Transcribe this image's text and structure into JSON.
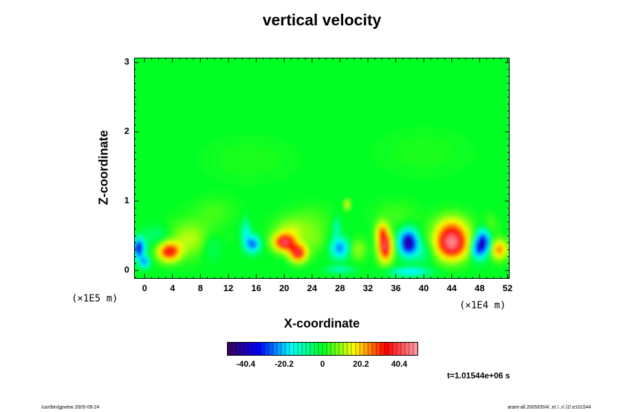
{
  "chart_data": {
    "type": "heatmap",
    "title": "vertical velocity",
    "xlabel": "X-coordinate",
    "ylabel": "Z-coordinate",
    "x_unit": "(×1E4 m)",
    "y_unit": "(×1E5 m)",
    "xlim": [
      -1.5,
      52.3
    ],
    "ylim": [
      -0.12,
      3.07
    ],
    "x_ticks": [
      0,
      4,
      8,
      12,
      16,
      20,
      24,
      28,
      32,
      36,
      40,
      44,
      48,
      52
    ],
    "y_ticks": [
      0,
      1,
      2,
      3
    ],
    "colorbar": {
      "range": [
        -50,
        50
      ],
      "tick_values": [
        -40.4,
        -20.2,
        0,
        20.2,
        40.4
      ],
      "tick_labels": [
        "-40.4",
        "-20.2",
        "0",
        "20.2",
        "40.4"
      ],
      "colors": [
        "#3a005a",
        "#0000ff",
        "#00ffff",
        "#00ff22",
        "#ffff00",
        "#ff0000",
        "#ff9ea8"
      ]
    },
    "features": [
      {
        "x": -0.8,
        "z": 0.32,
        "sx": 0.8,
        "sz": 0.14,
        "w": -38
      },
      {
        "x": 0.0,
        "z": 0.12,
        "sx": 0.7,
        "sz": 0.08,
        "w": -25
      },
      {
        "x": 3.5,
        "z": 0.27,
        "sx": 1.5,
        "sz": 0.13,
        "w": 35
      },
      {
        "x": 6.5,
        "z": 0.45,
        "sx": 3.5,
        "sz": 0.25,
        "w": 12
      },
      {
        "x": 2.0,
        "z": 0.5,
        "sx": 2.0,
        "sz": 0.15,
        "w": -8
      },
      {
        "x": 9.5,
        "z": 0.35,
        "sx": 1.5,
        "sz": 0.2,
        "w": -8
      },
      {
        "x": 15.5,
        "z": 0.38,
        "sx": 1.0,
        "sz": 0.12,
        "w": -28
      },
      {
        "x": 14.5,
        "z": 0.55,
        "sx": 0.6,
        "sz": 0.18,
        "w": -15
      },
      {
        "x": 20.0,
        "z": 0.4,
        "sx": 1.5,
        "sz": 0.12,
        "w": 36
      },
      {
        "x": 22.0,
        "z": 0.25,
        "sx": 1.2,
        "sz": 0.12,
        "w": 38
      },
      {
        "x": 21.0,
        "z": 0.55,
        "sx": 2.5,
        "sz": 0.2,
        "w": 12
      },
      {
        "x": 24.5,
        "z": 0.45,
        "sx": 1.5,
        "sz": 0.2,
        "w": 6
      },
      {
        "x": 28.0,
        "z": 0.32,
        "sx": 1.3,
        "sz": 0.15,
        "w": -25
      },
      {
        "x": 27.5,
        "z": 0.62,
        "sx": 0.5,
        "sz": 0.15,
        "w": -12
      },
      {
        "x": 30.5,
        "z": 0.3,
        "sx": 1.2,
        "sz": 0.15,
        "w": 10
      },
      {
        "x": 34.5,
        "z": 0.33,
        "sx": 1.0,
        "sz": 0.2,
        "w": 40
      },
      {
        "x": 34.0,
        "z": 0.55,
        "sx": 0.8,
        "sz": 0.15,
        "w": 22
      },
      {
        "x": 37.8,
        "z": 0.4,
        "sx": 1.3,
        "sz": 0.18,
        "w": -45
      },
      {
        "x": 40.0,
        "z": 0.25,
        "sx": 1.5,
        "sz": 0.15,
        "w": -8
      },
      {
        "x": 44.0,
        "z": 0.38,
        "sx": 2.3,
        "sz": 0.22,
        "w": 44
      },
      {
        "x": 44.0,
        "z": 0.62,
        "sx": 2.5,
        "sz": 0.2,
        "w": 15
      },
      {
        "x": 48.5,
        "z": 0.4,
        "sx": 1.0,
        "sz": 0.18,
        "w": -40
      },
      {
        "x": 47.5,
        "z": 0.3,
        "sx": 0.8,
        "sz": 0.15,
        "w": -20
      },
      {
        "x": 50.8,
        "z": 0.3,
        "sx": 1.2,
        "sz": 0.14,
        "w": 25
      },
      {
        "x": 49.5,
        "z": 0.65,
        "sx": 1.0,
        "sz": 0.15,
        "w": 6
      },
      {
        "x": 38.0,
        "z": -0.02,
        "sx": 3.0,
        "sz": 0.06,
        "w": -18
      },
      {
        "x": 28.0,
        "z": 0.01,
        "sx": 2.0,
        "sz": 0.05,
        "w": -12
      },
      {
        "x": 24.0,
        "z": 0.75,
        "sx": 3.0,
        "sz": 0.2,
        "w": 4
      },
      {
        "x": 36.0,
        "z": 0.8,
        "sx": 3.0,
        "sz": 0.2,
        "w": 4
      },
      {
        "x": 10.0,
        "z": 0.85,
        "sx": 3.0,
        "sz": 0.2,
        "w": 4
      },
      {
        "x": 29.0,
        "z": 0.95,
        "sx": 0.3,
        "sz": 0.06,
        "w": 20
      },
      {
        "x": 15.0,
        "z": 1.6,
        "sx": 6.0,
        "sz": 0.3,
        "w": 2
      },
      {
        "x": 40.0,
        "z": 1.7,
        "sx": 6.0,
        "sz": 0.3,
        "w": 2
      }
    ]
  },
  "annotations": {
    "time_label": "t=1.01544e+06 s",
    "footer_left": "/usr/bin/gpview 2005-09-24",
    "footer_right": "arare-all.2005/05/4/..e/./..r/./2/.e101544"
  }
}
